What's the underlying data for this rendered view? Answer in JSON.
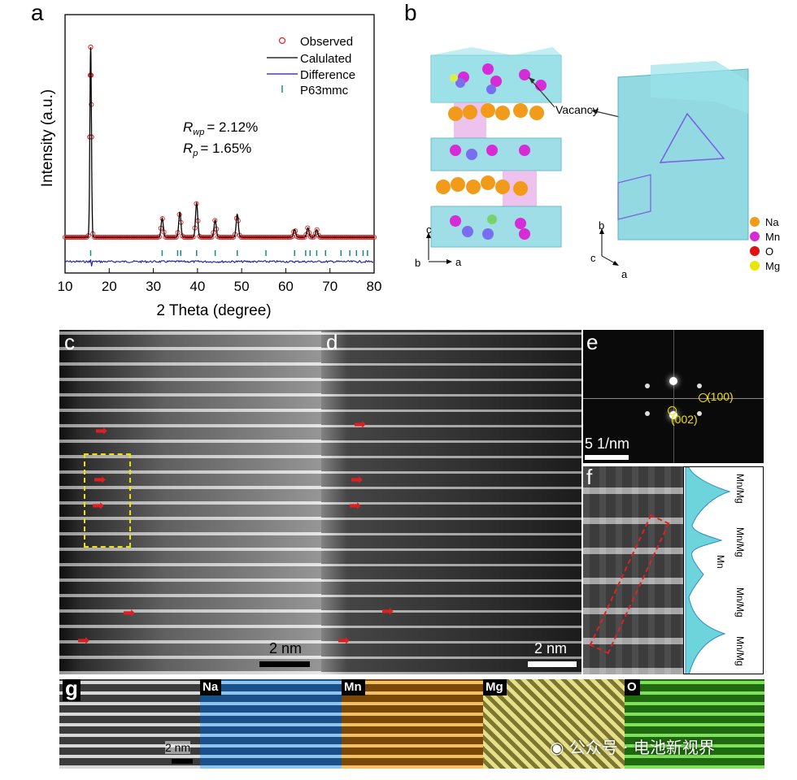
{
  "panel_labels": {
    "a": "a",
    "b": "b",
    "c": "c",
    "d": "d",
    "e": "e",
    "f": "f",
    "g": "g"
  },
  "chart_data": {
    "type": "line",
    "title": "",
    "xlabel": "2 Theta (degree)",
    "ylabel": "Intensity (a.u.)",
    "xlim": [
      10,
      80
    ],
    "xticks": [
      10,
      20,
      30,
      40,
      50,
      60,
      70,
      80
    ],
    "legend": [
      "Observed",
      "Calulated",
      "Difference",
      "P63mmc"
    ],
    "legend_position": "top-right",
    "annotations": {
      "rwp": {
        "symbol": "R",
        "sub": "wp",
        "value": "= 2.12%"
      },
      "rp": {
        "symbol": "R",
        "sub": "p",
        "value": "= 1.65%"
      }
    },
    "peaks": [
      {
        "x": 15.8,
        "h": 1.0
      },
      {
        "x": 32.0,
        "h": 0.1
      },
      {
        "x": 36.0,
        "h": 0.13
      },
      {
        "x": 39.8,
        "h": 0.18
      },
      {
        "x": 44.0,
        "h": 0.09
      },
      {
        "x": 49.0,
        "h": 0.12
      },
      {
        "x": 62.0,
        "h": 0.04
      },
      {
        "x": 65.0,
        "h": 0.05
      },
      {
        "x": 67.0,
        "h": 0.04
      }
    ],
    "bragg_ticks": [
      15.8,
      32.0,
      35.5,
      36.2,
      39.8,
      44.0,
      49.0,
      55.5,
      62.0,
      64.5,
      65.5,
      67.0,
      69.0,
      72.5,
      74.5,
      76.0,
      77.5,
      78.5
    ]
  },
  "structure": {
    "vacancy_label": "Vacancy",
    "axes_left": {
      "c": "c",
      "b": "b",
      "a": "a"
    },
    "axes_right": {
      "b": "b",
      "c": "c",
      "a": "a"
    },
    "legend": [
      {
        "label": "Na",
        "color": "#f29b1a"
      },
      {
        "label": "Mn",
        "color": "#d62bd6"
      },
      {
        "label": "O",
        "color": "#e01010"
      },
      {
        "label": "Mg",
        "color": "#e6e600"
      }
    ]
  },
  "scale_bars": {
    "c": "2 nm",
    "d": "2 nm",
    "e": "5 1/nm",
    "g": "2 nm"
  },
  "fft_labels": {
    "l100": "(100)",
    "l002": "(002)"
  },
  "profile_labels": [
    "Mn/Mg",
    "Mn/Mg",
    "Mn",
    "Mn/Mg",
    "Mn/Mg"
  ],
  "maps": [
    "Na",
    "Mn",
    "Mg",
    "O"
  ],
  "watermark": "公众号 · 电池新视界",
  "colors": {
    "observed": "#e02020",
    "calculated": "#000000",
    "difference": "#1a1aa8",
    "bragg": "#1a8a7a",
    "profile_fill": "#5fd0d8"
  }
}
